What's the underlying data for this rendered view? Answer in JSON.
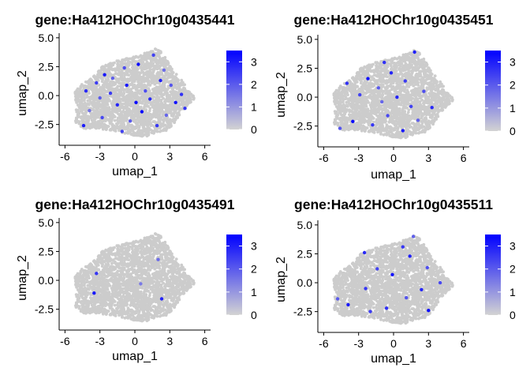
{
  "colors": {
    "low": "#d3d3d3",
    "high": "#0000ff",
    "point_base": "#cccccc"
  },
  "chart_data": [
    {
      "type": "scatter",
      "title": "gene:Ha412HOChr10g0435441",
      "xlabel": "umap_1",
      "ylabel": "umap_2",
      "xlim": [
        -6.5,
        6.5
      ],
      "ylim": [
        -4.3,
        5.4
      ],
      "xticks": [
        -6,
        -3,
        0,
        3,
        6
      ],
      "yticks": [
        -2.5,
        0.0,
        2.5,
        5.0
      ],
      "xtick_labels": [
        "-6",
        "-3",
        "0",
        "3",
        "6"
      ],
      "ytick_labels": [
        "-2.5",
        "0.0",
        "2.5",
        "5.0"
      ],
      "legend": {
        "position": "right",
        "min": 0,
        "max": 3.5,
        "ticks": [
          0,
          1,
          2,
          3
        ],
        "tick_labels": [
          "0",
          "1",
          "2",
          "3"
        ]
      },
      "expressing_cells": [
        {
          "x": -4.2,
          "y": 0.4,
          "v": 2.8
        },
        {
          "x": -3.3,
          "y": 1.1,
          "v": 2.5
        },
        {
          "x": -2.6,
          "y": 1.8,
          "v": 3.1
        },
        {
          "x": -1.9,
          "y": 1.5,
          "v": 1.9
        },
        {
          "x": -0.9,
          "y": 2.4,
          "v": 2.2
        },
        {
          "x": 0.3,
          "y": 2.7,
          "v": 3.3
        },
        {
          "x": 1.6,
          "y": 3.5,
          "v": 2.4
        },
        {
          "x": 2.2,
          "y": 1.3,
          "v": 3.0
        },
        {
          "x": 3.1,
          "y": 0.9,
          "v": 2.1
        },
        {
          "x": 4.0,
          "y": 0.1,
          "v": 2.7
        },
        {
          "x": 3.5,
          "y": -0.6,
          "v": 3.2
        },
        {
          "x": 2.7,
          "y": -1.7,
          "v": 1.8
        },
        {
          "x": 1.9,
          "y": -2.6,
          "v": 2.6
        },
        {
          "x": 0.6,
          "y": -1.4,
          "v": 3.4
        },
        {
          "x": -0.4,
          "y": -2.2,
          "v": 2.0
        },
        {
          "x": -1.5,
          "y": -0.8,
          "v": 2.9
        },
        {
          "x": -2.8,
          "y": -1.9,
          "v": 2.3
        },
        {
          "x": -3.9,
          "y": -1.3,
          "v": 1.6
        },
        {
          "x": -4.4,
          "y": -2.6,
          "v": 3.0
        },
        {
          "x": -2.1,
          "y": 0.2,
          "v": 2.5
        },
        {
          "x": -0.7,
          "y": 0.9,
          "v": 3.1
        },
        {
          "x": 0.9,
          "y": 0.4,
          "v": 2.2
        },
        {
          "x": 1.3,
          "y": -0.3,
          "v": 2.8
        },
        {
          "x": 2.5,
          "y": 2.2,
          "v": 1.7
        },
        {
          "x": -1.1,
          "y": -3.1,
          "v": 2.4
        },
        {
          "x": 0.1,
          "y": -0.6,
          "v": 3.3
        },
        {
          "x": -3.0,
          "y": -0.2,
          "v": 2.0
        },
        {
          "x": 4.3,
          "y": -1.1,
          "v": 2.6
        }
      ]
    },
    {
      "type": "scatter",
      "title": "gene:Ha412HOChr10g0435451",
      "xlabel": "umap_1",
      "ylabel": "umap_2",
      "xlim": [
        -6.5,
        6.5
      ],
      "ylim": [
        -4.3,
        5.4
      ],
      "xticks": [
        -6,
        -3,
        0,
        3,
        6
      ],
      "yticks": [
        -2.5,
        0.0,
        2.5,
        5.0
      ],
      "xtick_labels": [
        "-6",
        "-3",
        "0",
        "3",
        "6"
      ],
      "ytick_labels": [
        "-2.5",
        "0.0",
        "2.5",
        "5.0"
      ],
      "legend": {
        "position": "right",
        "min": 0,
        "max": 3.5,
        "ticks": [
          0,
          1,
          2,
          3
        ],
        "tick_labels": [
          "0",
          "1",
          "2",
          "3"
        ]
      },
      "expressing_cells": [
        {
          "x": -4.0,
          "y": 1.2,
          "v": 2.7
        },
        {
          "x": -2.9,
          "y": 0.2,
          "v": 2.4
        },
        {
          "x": -2.2,
          "y": 1.6,
          "v": 3.2
        },
        {
          "x": -1.3,
          "y": 0.8,
          "v": 2.0
        },
        {
          "x": -0.2,
          "y": 2.1,
          "v": 2.9
        },
        {
          "x": 1.0,
          "y": 1.4,
          "v": 2.5
        },
        {
          "x": 1.8,
          "y": 3.9,
          "v": 3.0
        },
        {
          "x": 2.6,
          "y": 0.5,
          "v": 2.2
        },
        {
          "x": 3.3,
          "y": -0.9,
          "v": 2.8
        },
        {
          "x": 2.1,
          "y": -2.0,
          "v": 1.9
        },
        {
          "x": 0.8,
          "y": -2.9,
          "v": 3.1
        },
        {
          "x": -0.5,
          "y": -1.6,
          "v": 2.3
        },
        {
          "x": -1.8,
          "y": -2.4,
          "v": 2.6
        },
        {
          "x": -3.5,
          "y": -2.1,
          "v": 3.3
        },
        {
          "x": -4.6,
          "y": -2.7,
          "v": 2.1
        },
        {
          "x": 0.3,
          "y": 0.0,
          "v": 2.9
        },
        {
          "x": 1.5,
          "y": -0.8,
          "v": 2.4
        },
        {
          "x": -1.0,
          "y": -0.4,
          "v": 1.8
        },
        {
          "x": -0.8,
          "y": 3.0,
          "v": 2.7
        }
      ]
    },
    {
      "type": "scatter",
      "title": "gene:Ha412HOChr10g0435491",
      "xlabel": "umap_1",
      "ylabel": "umap_2",
      "xlim": [
        -6.5,
        6.5
      ],
      "ylim": [
        -4.3,
        5.4
      ],
      "xticks": [
        -6,
        -3,
        0,
        3,
        6
      ],
      "yticks": [
        -2.5,
        0.0,
        2.5,
        5.0
      ],
      "xtick_labels": [
        "-6",
        "-3",
        "0",
        "3",
        "6"
      ],
      "ytick_labels": [
        "-2.5",
        "0.0",
        "2.5",
        "5.0"
      ],
      "legend": {
        "position": "right",
        "min": 0,
        "max": 3.5,
        "ticks": [
          0,
          1,
          2,
          3
        ],
        "tick_labels": [
          "0",
          "1",
          "2",
          "3"
        ]
      },
      "expressing_cells": [
        {
          "x": -3.3,
          "y": 0.6,
          "v": 2.6
        },
        {
          "x": -3.5,
          "y": -1.1,
          "v": 3.1
        },
        {
          "x": 2.3,
          "y": -1.6,
          "v": 2.9
        },
        {
          "x": 2.0,
          "y": 1.8,
          "v": 1.7
        },
        {
          "x": 0.5,
          "y": -0.3,
          "v": 1.5
        }
      ]
    },
    {
      "type": "scatter",
      "title": "gene:Ha412HOChr10g0435511",
      "xlabel": "umap_1",
      "ylabel": "umap_2",
      "xlim": [
        -6.5,
        6.5
      ],
      "ylim": [
        -4.3,
        5.4
      ],
      "xticks": [
        -6,
        -3,
        0,
        3,
        6
      ],
      "yticks": [
        -2.5,
        0.0,
        2.5,
        5.0
      ],
      "xtick_labels": [
        "-6",
        "-3",
        "0",
        "3",
        "6"
      ],
      "ytick_labels": [
        "-2.5",
        "0.0",
        "2.5",
        "5.0"
      ],
      "legend": {
        "position": "right",
        "min": 0,
        "max": 3.5,
        "ticks": [
          0,
          1,
          2,
          3
        ],
        "tick_labels": [
          "0",
          "1",
          "2",
          "3"
        ]
      },
      "expressing_cells": [
        {
          "x": -2.5,
          "y": 2.6,
          "v": 2.8
        },
        {
          "x": -1.4,
          "y": 1.2,
          "v": 2.4
        },
        {
          "x": -0.1,
          "y": 0.7,
          "v": 3.2
        },
        {
          "x": 0.8,
          "y": 3.1,
          "v": 2.6
        },
        {
          "x": 1.4,
          "y": 2.3,
          "v": 3.0
        },
        {
          "x": 2.9,
          "y": 1.3,
          "v": 2.2
        },
        {
          "x": 2.4,
          "y": -0.6,
          "v": 2.9
        },
        {
          "x": 3.0,
          "y": -2.4,
          "v": 3.3
        },
        {
          "x": 1.1,
          "y": -1.3,
          "v": 2.1
        },
        {
          "x": -0.6,
          "y": -2.2,
          "v": 2.7
        },
        {
          "x": -2.0,
          "y": -2.5,
          "v": 2.5
        },
        {
          "x": -3.9,
          "y": -1.9,
          "v": 3.1
        },
        {
          "x": -4.8,
          "y": -1.4,
          "v": 2.0
        },
        {
          "x": -2.4,
          "y": -0.5,
          "v": 2.6
        },
        {
          "x": 1.7,
          "y": 4.0,
          "v": 1.9
        },
        {
          "x": 4.0,
          "y": 0.0,
          "v": 2.3
        }
      ]
    }
  ]
}
